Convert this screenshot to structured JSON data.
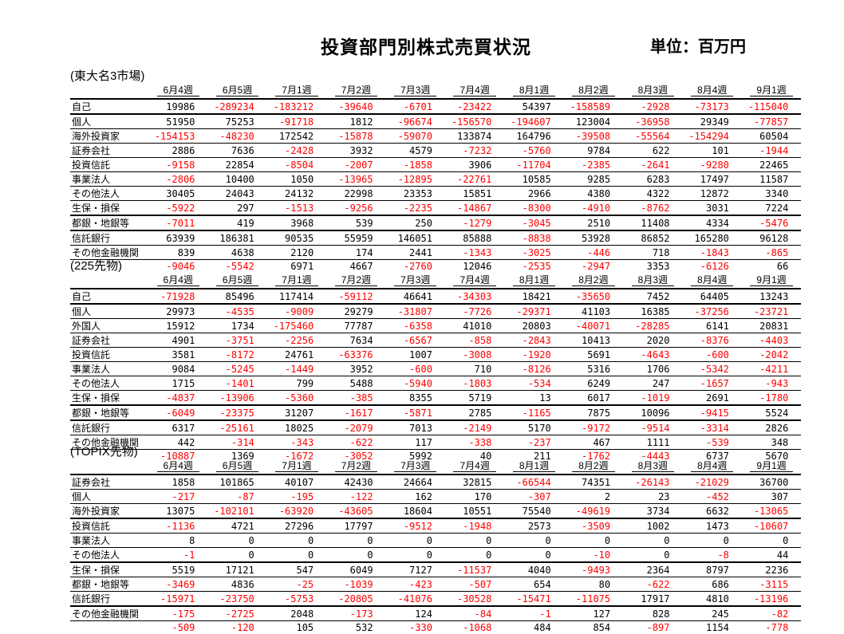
{
  "page": {
    "title": "投資部門別株式売買状況",
    "unit_label": "単位：百万円"
  },
  "colors": {
    "negative_value": "#ff0000",
    "positive_value": "#000000"
  },
  "columns": [
    "6月4週",
    "6月5週",
    "7月1週",
    "7月2週",
    "7月3週",
    "7月4週",
    "8月1週",
    "8月2週",
    "8月3週",
    "8月4週",
    "9月1週"
  ],
  "tables": [
    {
      "section_label": "(東大名3市場)",
      "rows": [
        {
          "label": "自己",
          "values": [
            19986,
            -289234,
            -183212,
            -39640,
            -6701,
            -23422,
            54397,
            -158589,
            -2928,
            -73173,
            -115040
          ]
        },
        {
          "label": "個人",
          "values": [
            51950,
            75253,
            -91718,
            1812,
            -96674,
            -156570,
            -194607,
            123004,
            -36958,
            29349,
            -77857
          ]
        },
        {
          "label": "海外投資家",
          "values": [
            -154153,
            -48230,
            172542,
            -15878,
            -59070,
            133874,
            164796,
            -39508,
            -55564,
            -154294,
            60504
          ]
        },
        {
          "label": "証券会社",
          "values": [
            2886,
            7636,
            -2428,
            3932,
            4579,
            -7232,
            -5760,
            9784,
            622,
            101,
            -1944
          ]
        },
        {
          "label": "投資信託",
          "values": [
            -9158,
            22854,
            -8504,
            -2007,
            -1858,
            3906,
            -11704,
            -2385,
            -2641,
            -9280,
            22465
          ]
        },
        {
          "label": "事業法人",
          "values": [
            -2806,
            10400,
            1050,
            -13965,
            -12895,
            -22761,
            10585,
            9285,
            6283,
            17497,
            11587
          ]
        },
        {
          "label": "その他法人",
          "values": [
            30405,
            24043,
            24132,
            22998,
            23353,
            15851,
            2966,
            4380,
            4322,
            12872,
            3340
          ]
        },
        {
          "label": "生保・損保",
          "values": [
            -5922,
            297,
            -1513,
            -9256,
            -2235,
            -14867,
            -8300,
            -4910,
            -8762,
            3031,
            7224
          ]
        },
        {
          "label": "都銀・地銀等",
          "values": [
            -7011,
            419,
            3968,
            539,
            250,
            -1279,
            -3045,
            2510,
            11408,
            4334,
            -5476
          ]
        },
        {
          "label": "信託銀行",
          "values": [
            63939,
            186381,
            90535,
            55959,
            146051,
            85888,
            -8838,
            53928,
            86852,
            165280,
            96128
          ]
        },
        {
          "label": "その他金融機関",
          "values": [
            839,
            4638,
            2120,
            174,
            2441,
            -1343,
            -3025,
            -446,
            718,
            -1843,
            -865
          ]
        }
      ],
      "total": {
        "label": "",
        "values": [
          -9046,
          -5542,
          6971,
          4667,
          -2760,
          12046,
          -2535,
          -2947,
          3353,
          -6126,
          66
        ]
      }
    },
    {
      "section_label": "(225先物)",
      "rows": [
        {
          "label": "自己",
          "values": [
            -71928,
            85496,
            117414,
            -59112,
            46641,
            -34303,
            18421,
            -35650,
            7452,
            64405,
            13243
          ]
        },
        {
          "label": "個人",
          "values": [
            29973,
            -4535,
            -9009,
            29279,
            -31807,
            -7726,
            -29371,
            41103,
            16385,
            -37256,
            -23721
          ]
        },
        {
          "label": "外国人",
          "values": [
            15912,
            1734,
            -175460,
            77787,
            -6358,
            41010,
            20803,
            -40071,
            -28285,
            6141,
            20831
          ]
        },
        {
          "label": "証券会社",
          "values": [
            4901,
            -3751,
            -2256,
            7634,
            -6567,
            -858,
            -2843,
            10413,
            2020,
            -8376,
            -4403
          ]
        },
        {
          "label": "投資信託",
          "values": [
            3581,
            -8172,
            24761,
            -63376,
            1007,
            -3008,
            -1920,
            5691,
            -4643,
            -600,
            -2042
          ]
        },
        {
          "label": "事業法人",
          "values": [
            9084,
            -5245,
            -1449,
            3952,
            -600,
            710,
            -8126,
            5316,
            1706,
            -5342,
            -4211
          ]
        },
        {
          "label": "その他法人",
          "values": [
            1715,
            -1401,
            799,
            5488,
            -5940,
            -1803,
            -534,
            6249,
            247,
            -1657,
            -943
          ]
        },
        {
          "label": "生保・損保",
          "values": [
            -4837,
            -13906,
            -5360,
            -385,
            8355,
            5719,
            13,
            6017,
            -1019,
            2691,
            -1780
          ]
        },
        {
          "label": "都銀・地銀等",
          "values": [
            -6049,
            -23375,
            31207,
            -1617,
            -5871,
            2785,
            -1165,
            7875,
            10096,
            -9415,
            5524
          ]
        },
        {
          "label": "信託銀行",
          "values": [
            6317,
            -25161,
            18025,
            -2079,
            7013,
            -2149,
            5170,
            -9172,
            -9514,
            -3314,
            2826
          ]
        },
        {
          "label": "その他金融機関",
          "values": [
            442,
            -314,
            -343,
            -622,
            117,
            -338,
            -237,
            467,
            1111,
            -539,
            348
          ]
        }
      ],
      "total": {
        "label": "",
        "values": [
          -10887,
          1369,
          -1672,
          -3052,
          5992,
          40,
          211,
          -1762,
          -4443,
          6737,
          5670
        ]
      }
    },
    {
      "section_label": "(TOPIX先物)",
      "rows": [
        {
          "label": "証券会社",
          "values": [
            1858,
            101865,
            40107,
            42430,
            24664,
            32815,
            -66544,
            74351,
            -26143,
            -21029,
            36700
          ]
        },
        {
          "label": "個人",
          "values": [
            -217,
            -87,
            -195,
            -122,
            162,
            170,
            -307,
            2,
            23,
            -452,
            307
          ]
        },
        {
          "label": "海外投資家",
          "values": [
            13075,
            -102101,
            -63920,
            -43605,
            18604,
            10551,
            75540,
            -49619,
            3734,
            6632,
            -13065
          ]
        },
        {
          "label": "投資信託",
          "values": [
            -1136,
            4721,
            27296,
            17797,
            -9512,
            -1948,
            2573,
            -3509,
            1002,
            1473,
            -10607
          ]
        },
        {
          "label": "事業法人",
          "values": [
            8,
            0,
            0,
            0,
            0,
            0,
            0,
            0,
            0,
            0,
            0
          ]
        },
        {
          "label": "その他法人",
          "values": [
            -1,
            0,
            0,
            0,
            0,
            0,
            0,
            -10,
            0,
            -8,
            44
          ]
        },
        {
          "label": "生保・損保",
          "values": [
            5519,
            17121,
            547,
            6049,
            7127,
            -11537,
            4040,
            -9493,
            2364,
            8797,
            2236
          ]
        },
        {
          "label": "都銀・地銀等",
          "values": [
            -3469,
            4836,
            -25,
            -1039,
            -423,
            -507,
            654,
            80,
            -622,
            686,
            -3115
          ]
        },
        {
          "label": "信託銀行",
          "values": [
            -15971,
            -23750,
            -5753,
            -20805,
            -41076,
            -30528,
            -15471,
            -11075,
            17917,
            4810,
            -13196
          ]
        },
        {
          "label": "その他金融機関",
          "values": [
            -175,
            -2725,
            2048,
            -173,
            124,
            -84,
            -1,
            127,
            828,
            245,
            -82
          ]
        }
      ],
      "total": {
        "label": "",
        "values": [
          -509,
          -120,
          105,
          532,
          -330,
          -1068,
          484,
          854,
          -897,
          1154,
          -778
        ]
      }
    }
  ]
}
